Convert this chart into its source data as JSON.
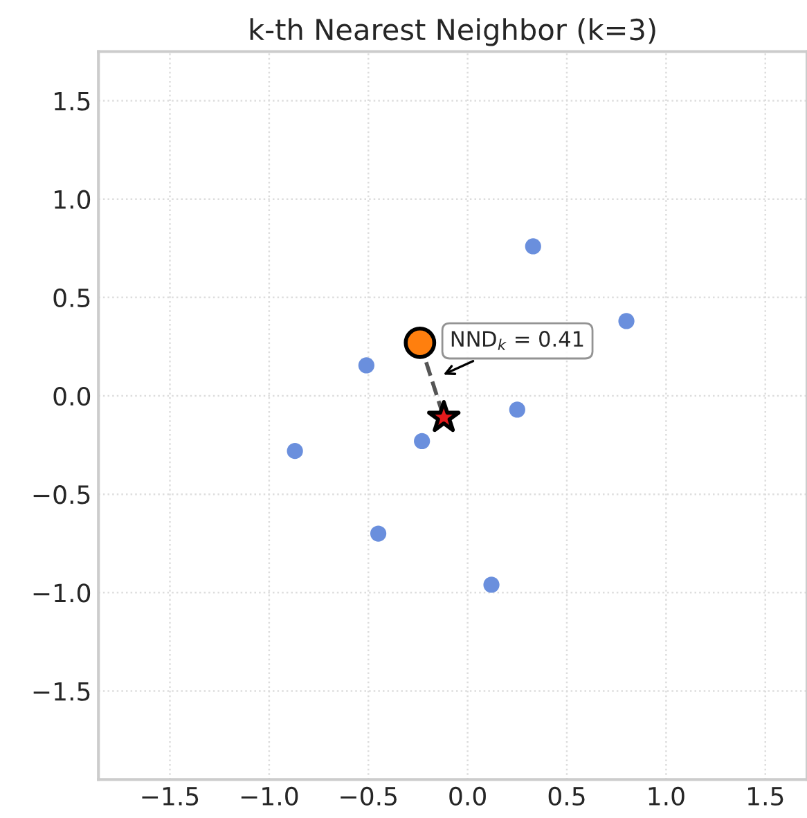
{
  "chart_data": {
    "type": "scatter",
    "title": "k-th Nearest Neighbor (k=3)",
    "series": [
      {
        "color": "#6a8fdd",
        "marker": "circle",
        "x": [
          0.33,
          -0.51,
          -0.87,
          -0.23,
          0.25,
          -0.45,
          0.12,
          0.8
        ],
        "values": [
          0.76,
          0.155,
          -0.28,
          -0.23,
          -0.07,
          -0.7,
          -0.96,
          0.38
        ]
      },
      {
        "type": "line",
        "color": "#555555",
        "line_style": "dashed",
        "marker": "none",
        "x": [
          -0.24,
          -0.12
        ],
        "values": [
          0.27,
          -0.11
        ]
      },
      {
        "color": "#ff7f0e",
        "marker": "circle",
        "x": [
          -0.24
        ],
        "values": [
          0.27
        ]
      },
      {
        "color": "#e41a1c",
        "marker": "star",
        "x": [
          -0.12
        ],
        "values": [
          -0.11
        ]
      }
    ],
    "annotations": [
      {
        "text": "NND$_{k}$ = 0.41",
        "x": -0.14,
        "y": 0.1
      }
    ],
    "xlim": [
      -1.86,
      1.71
    ],
    "ylim": [
      -1.95,
      1.75
    ],
    "xticks": [
      {
        "value": -1.5,
        "label": "−1.5"
      },
      {
        "value": -1.0,
        "label": "−1.0"
      },
      {
        "value": -0.5,
        "label": "−0.5"
      },
      {
        "value": 0.0,
        "label": "0.0"
      },
      {
        "value": 0.5,
        "label": "0.5"
      },
      {
        "value": 1.0,
        "label": "1.0"
      },
      {
        "value": 1.5,
        "label": "1.5"
      }
    ],
    "yticks": [
      {
        "value": -1.5,
        "label": "−1.5"
      },
      {
        "value": -1.0,
        "label": "−1.0"
      },
      {
        "value": -0.5,
        "label": "−0.5"
      },
      {
        "value": 0.0,
        "label": "0.0"
      },
      {
        "value": 0.5,
        "label": "0.5"
      },
      {
        "value": 1.0,
        "label": "1.0"
      },
      {
        "value": 1.5,
        "label": "1.5"
      }
    ],
    "grid": true,
    "legend": false
  }
}
